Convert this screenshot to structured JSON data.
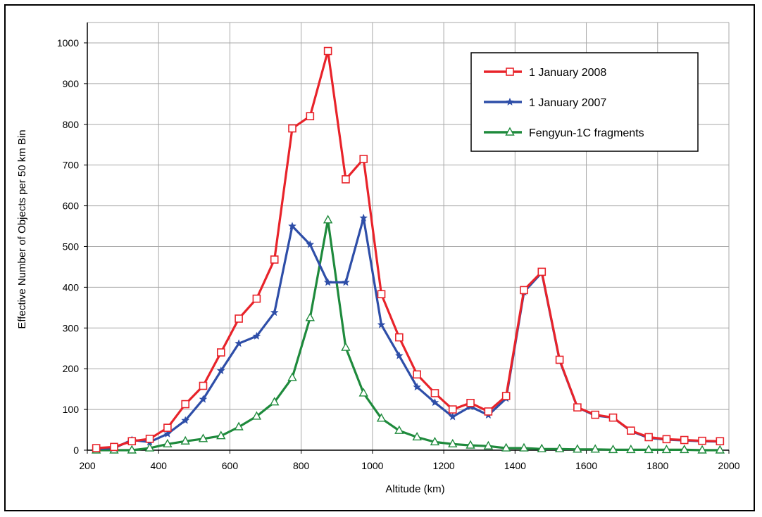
{
  "chart_data": {
    "type": "line",
    "title": "",
    "xlabel": "Altitude (km)",
    "ylabel": "Effective Number of Objects per 50 km Bin",
    "xlim": [
      200,
      2000
    ],
    "ylim": [
      0,
      1050
    ],
    "xticks": [
      "200",
      "400",
      "600",
      "800",
      "1000",
      "1200",
      "1400",
      "1600",
      "1800",
      "2000"
    ],
    "yticks": [
      "0",
      "100",
      "200",
      "300",
      "400",
      "500",
      "600",
      "700",
      "800",
      "900",
      "1000"
    ],
    "grid": true,
    "legend_position": "top-right",
    "x": [
      225,
      275,
      325,
      375,
      425,
      475,
      525,
      575,
      625,
      675,
      725,
      775,
      825,
      875,
      925,
      975,
      1025,
      1075,
      1125,
      1175,
      1225,
      1275,
      1325,
      1375,
      1425,
      1475,
      1525,
      1575,
      1625,
      1675,
      1725,
      1775,
      1825,
      1875,
      1925,
      1975
    ],
    "series": [
      {
        "name": "1 January 2008",
        "color": "#e8232a",
        "marker": "square-open",
        "values": [
          5,
          8,
          22,
          28,
          55,
          113,
          158,
          240,
          323,
          372,
          468,
          790,
          820,
          980,
          665,
          715,
          383,
          277,
          186,
          140,
          100,
          116,
          95,
          133,
          393,
          438,
          222,
          105,
          87,
          80,
          48,
          32,
          27,
          25,
          23,
          22
        ]
      },
      {
        "name": "1 January 2007",
        "color": "#2e4ea8",
        "marker": "star",
        "values": [
          3,
          5,
          25,
          20,
          40,
          73,
          125,
          195,
          262,
          280,
          338,
          550,
          505,
          412,
          412,
          570,
          308,
          232,
          155,
          117,
          82,
          107,
          86,
          127,
          388,
          436,
          220,
          105,
          85,
          80,
          47,
          30,
          26,
          24,
          22,
          21
        ]
      },
      {
        "name": "Fengyun-1C fragments",
        "color": "#1e8a3c",
        "marker": "triangle-open",
        "values": [
          0,
          0,
          0,
          5,
          15,
          22,
          28,
          35,
          57,
          83,
          118,
          178,
          325,
          565,
          252,
          140,
          78,
          48,
          32,
          20,
          15,
          12,
          10,
          5,
          5,
          3,
          3,
          2,
          2,
          1,
          1,
          1,
          1,
          1,
          0,
          0
        ]
      }
    ]
  }
}
